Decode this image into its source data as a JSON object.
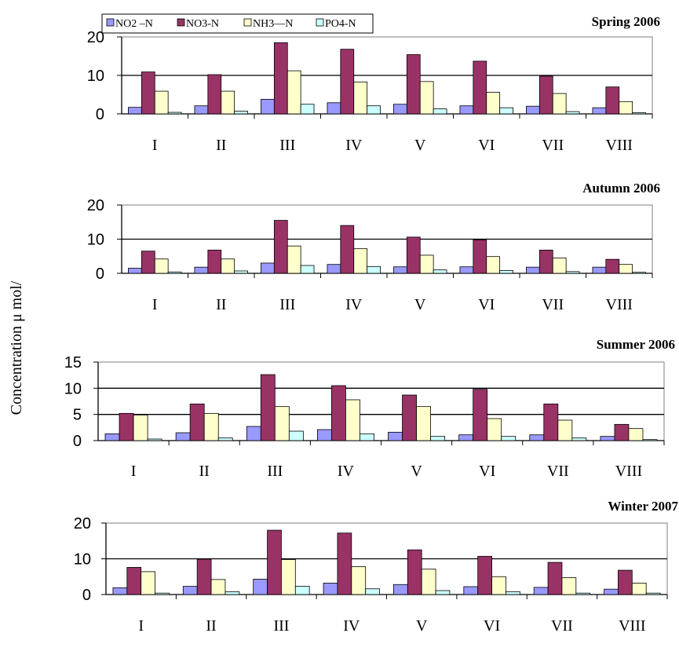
{
  "ylabel": "Concentration μ mol/",
  "legend": [
    {
      "name": "NO2 –N",
      "color": "#9999ff"
    },
    {
      "name": "NO3-N",
      "color": "#993366"
    },
    {
      "name": "NH3—N",
      "color": "#ffffcc"
    },
    {
      "name": "PO4-N",
      "color": "#ccffff"
    }
  ],
  "chart_data": [
    {
      "type": "bar",
      "title": "Spring 2006",
      "categories": [
        "I",
        "II",
        "III",
        "IV",
        "V",
        "VI",
        "VII",
        "VIII"
      ],
      "ylim": [
        0,
        20
      ],
      "yticks": [
        0,
        10,
        20
      ],
      "series": [
        {
          "name": "NO2 –N",
          "values": [
            1.7,
            2.1,
            3.8,
            2.9,
            2.5,
            2.1,
            2.0,
            1.6
          ]
        },
        {
          "name": "NO3-N",
          "values": [
            10.9,
            10.2,
            18.5,
            16.8,
            15.4,
            13.7,
            9.8,
            7.0
          ]
        },
        {
          "name": "NH3—N",
          "values": [
            5.9,
            5.9,
            11.2,
            8.3,
            8.4,
            5.6,
            5.3,
            3.2
          ]
        },
        {
          "name": "PO4-N",
          "values": [
            0.4,
            0.7,
            2.5,
            2.1,
            1.3,
            1.6,
            0.6,
            0.3
          ]
        }
      ]
    },
    {
      "type": "bar",
      "title": "Autumn 2006",
      "categories": [
        "I",
        "II",
        "III",
        "IV",
        "V",
        "VI",
        "VII",
        "VIII"
      ],
      "ylim": [
        0,
        20
      ],
      "yticks": [
        0,
        10,
        20
      ],
      "series": [
        {
          "name": "NO2 –N",
          "values": [
            1.5,
            1.8,
            3.0,
            2.6,
            1.9,
            1.9,
            1.8,
            1.8
          ]
        },
        {
          "name": "NO3-N",
          "values": [
            6.5,
            6.8,
            15.5,
            14.0,
            10.6,
            9.8,
            6.8,
            4.1
          ]
        },
        {
          "name": "NH3—N",
          "values": [
            4.2,
            4.2,
            8.0,
            7.2,
            5.3,
            4.9,
            4.5,
            2.6
          ]
        },
        {
          "name": "PO4-N",
          "values": [
            0.4,
            0.7,
            2.3,
            2.0,
            1.0,
            0.8,
            0.5,
            0.3
          ]
        }
      ]
    },
    {
      "type": "bar",
      "title": "Summer 2006",
      "categories": [
        "I",
        "II",
        "III",
        "IV",
        "V",
        "VI",
        "VII",
        "VIII"
      ],
      "ylim": [
        0,
        15
      ],
      "yticks": [
        0,
        5,
        10,
        15
      ],
      "series": [
        {
          "name": "NO2 –N",
          "values": [
            1.3,
            1.5,
            2.7,
            2.1,
            1.6,
            1.1,
            1.1,
            0.8
          ]
        },
        {
          "name": "NO3-N",
          "values": [
            5.2,
            7.0,
            12.6,
            10.5,
            8.7,
            9.8,
            7.0,
            3.1
          ]
        },
        {
          "name": "NH3—N",
          "values": [
            4.9,
            5.2,
            6.5,
            7.8,
            6.5,
            4.2,
            3.9,
            2.3
          ]
        },
        {
          "name": "PO4-N",
          "values": [
            0.3,
            0.5,
            1.8,
            1.3,
            0.8,
            0.8,
            0.5,
            0.2
          ]
        }
      ]
    },
    {
      "type": "bar",
      "title": "Winter 2007",
      "categories": [
        "I",
        "II",
        "III",
        "IV",
        "V",
        "VI",
        "VII",
        "VIII"
      ],
      "ylim": [
        0,
        20
      ],
      "yticks": [
        0,
        10,
        20
      ],
      "series": [
        {
          "name": "NO2 –N",
          "values": [
            1.9,
            2.3,
            4.3,
            3.2,
            2.8,
            2.2,
            2.0,
            1.5
          ]
        },
        {
          "name": "NO3-N",
          "values": [
            7.6,
            9.9,
            18.0,
            17.2,
            12.5,
            10.7,
            9.0,
            6.8
          ]
        },
        {
          "name": "NH3—N",
          "values": [
            6.4,
            4.2,
            9.8,
            7.8,
            7.1,
            5.0,
            4.7,
            3.2
          ]
        },
        {
          "name": "PO4-N",
          "values": [
            0.4,
            0.8,
            2.3,
            1.6,
            1.1,
            0.8,
            0.4,
            0.4
          ]
        }
      ]
    }
  ]
}
